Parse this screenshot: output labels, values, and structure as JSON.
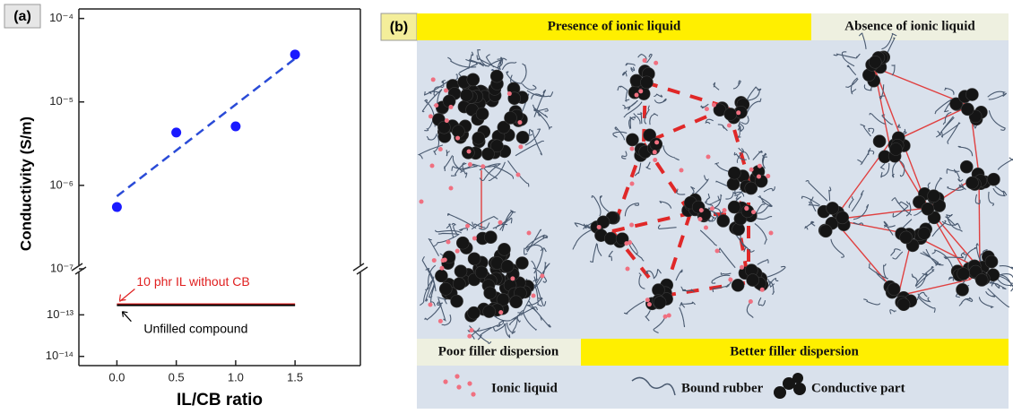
{
  "chart_data": {
    "type": "scatter",
    "panel_label": "(a)",
    "x_label": "IL/CB ratio",
    "y_label": "Conductivity (S/m)",
    "x": [
      0,
      0.5,
      1,
      1.5
    ],
    "values": [
      5.5e-07,
      4.3e-06,
      5.1e-06,
      3.7e-05
    ],
    "color": "#1a1aff",
    "fit": {
      "x": [
        0,
        1.5
      ],
      "values": [
        7.4e-07,
        3.3e-05
      ],
      "color": "#2a4bd7",
      "style": "dashed"
    },
    "lines": [
      {
        "label": "10 phr IL without CB",
        "color": "#e02020",
        "x": [
          0,
          1.5
        ],
        "values": [
          1.8e-13,
          1.8e-13
        ]
      },
      {
        "label": "Unfilled compound",
        "color": "#000000",
        "x": [
          0,
          1.5
        ],
        "values": [
          1.7e-13,
          1.7e-13
        ]
      }
    ],
    "log_scale": true,
    "xlim": [
      -0.32,
      2.05
    ],
    "xticks": [
      {
        "value": 0,
        "label": "0.0"
      },
      {
        "value": 0.5,
        "label": "0.5"
      },
      {
        "value": 1,
        "label": "1.0"
      },
      {
        "value": 1.5,
        "label": "1.5"
      }
    ],
    "ylim": [
      1e-07,
      0.00013
    ],
    "yticks": [
      {
        "value": 1e-07,
        "label": "10⁻⁷"
      },
      {
        "value": 1e-06,
        "label": "10⁻⁶"
      },
      {
        "value": 1e-05,
        "label": "10⁻⁵"
      },
      {
        "value": 0.0001,
        "label": "10⁻⁴"
      }
    ],
    "ylim_lower": [
      6e-15,
      1e-12
    ],
    "yticks_lower": [
      {
        "value": 1e-14,
        "label": "10⁻¹⁴"
      },
      {
        "value": 1e-13,
        "label": "10⁻¹³"
      }
    ]
  },
  "diagram": {
    "panel_label": "(b)",
    "headers": [
      "Presence of ionic liquid",
      "Absence of ionic liquid"
    ],
    "footers": [
      "Poor filler dispersion",
      "Better filler dispersion"
    ],
    "legend": [
      "Ionic liquid",
      "Bound rubber",
      "Conductive part"
    ]
  }
}
